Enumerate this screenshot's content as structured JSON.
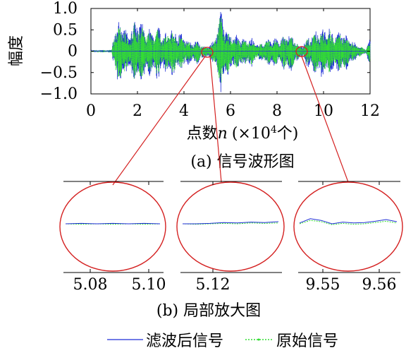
{
  "chart_data": [
    {
      "type": "line",
      "panel": "main",
      "caption": "(a) 信号波形图",
      "ylabel": "幅度",
      "xlabel_prefix": "点数",
      "xlabel_var": "n",
      "xlabel_unit_open": "(×10",
      "xlabel_unit_exp": "4",
      "xlabel_unit_close": "个)",
      "xlim": [
        0,
        12
      ],
      "ylim": [
        -1.0,
        1.0
      ],
      "xticks": [
        "0",
        "2",
        "4",
        "6",
        "8",
        "10",
        "12"
      ],
      "yticks": [
        "1.0",
        "0.5",
        "0",
        "−0.5",
        "−1.0"
      ],
      "ytick_values": [
        1.0,
        0.5,
        0,
        -0.5,
        -1.0
      ],
      "envelope": {
        "description_points_x": [
          0,
          0.9,
          1.0,
          1.3,
          1.6,
          1.9,
          2.1,
          2.4,
          2.6,
          2.9,
          3.1,
          3.4,
          3.7,
          4.0,
          4.3,
          4.6,
          4.9,
          5.1,
          5.3,
          5.5,
          5.6,
          5.8,
          6.0,
          6.3,
          6.6,
          6.9,
          7.2,
          7.5,
          7.8,
          8.1,
          8.4,
          8.7,
          9.0,
          9.3,
          9.6,
          9.9,
          10.2,
          10.5,
          10.8,
          11.1,
          11.3,
          11.5,
          11.8,
          12.0
        ],
        "pos": [
          0.02,
          0.03,
          0.5,
          0.72,
          0.35,
          0.75,
          0.7,
          0.55,
          0.45,
          0.6,
          0.35,
          0.55,
          0.45,
          0.35,
          0.2,
          0.25,
          0.1,
          0.15,
          0.25,
          0.75,
          0.95,
          0.55,
          0.4,
          0.35,
          0.3,
          0.3,
          0.15,
          0.25,
          0.3,
          0.25,
          0.45,
          0.35,
          0.1,
          0.3,
          0.45,
          0.5,
          0.55,
          0.4,
          0.45,
          0.3,
          0.2,
          0.15,
          0.05,
          0.3
        ],
        "neg": [
          -0.02,
          -0.03,
          -0.55,
          -0.75,
          -0.4,
          -0.75,
          -0.72,
          -0.6,
          -0.5,
          -0.65,
          -0.4,
          -0.6,
          -0.5,
          -0.4,
          -0.25,
          -0.3,
          -0.12,
          -0.18,
          -0.3,
          -0.78,
          -0.98,
          -0.6,
          -0.45,
          -0.4,
          -0.35,
          -0.35,
          -0.18,
          -0.3,
          -0.35,
          -0.3,
          -0.5,
          -0.4,
          -0.12,
          -0.35,
          -0.5,
          -0.6,
          -0.6,
          -0.45,
          -0.5,
          -0.35,
          -0.25,
          -0.18,
          -0.06,
          -0.35
        ]
      }
    },
    {
      "type": "line",
      "panel": "zoom",
      "caption": "(b) 局部放大图",
      "insets": [
        {
          "xticks": [
            "5.08",
            "5.10"
          ],
          "source_x": 5.0,
          "filtered_y": [
            0.0,
            0.01,
            0.0,
            0.01,
            0.0,
            0.01,
            0.0
          ],
          "original_y": [
            0.0,
            -0.01,
            0.0,
            -0.01,
            0.0,
            -0.01,
            0.0
          ]
        },
        {
          "xticks": [
            "5.12"
          ],
          "source_x": 5.1,
          "filtered_y": [
            0.0,
            0.0,
            0.01,
            0.03,
            0.02,
            0.04,
            0.03,
            0.05
          ],
          "original_y": [
            0.0,
            -0.01,
            0.0,
            0.01,
            0.0,
            0.02,
            0.01,
            0.02
          ]
        },
        {
          "xticks": [
            "9.55",
            "9.56"
          ],
          "source_x": 9.0,
          "filtered_y": [
            0.02,
            0.12,
            0.08,
            0.0,
            0.04,
            0.02,
            0.03,
            0.06,
            0.1,
            0.05
          ],
          "original_y": [
            0.0,
            0.08,
            0.05,
            -0.02,
            0.01,
            -0.01,
            0.0,
            0.03,
            0.06,
            0.02
          ]
        }
      ]
    }
  ],
  "legend": {
    "items": [
      {
        "label": "滤波后信号",
        "color": "#1f2fd6",
        "style": "solid"
      },
      {
        "label": "原始信号",
        "color": "#33dd33",
        "style": "dotted"
      }
    ]
  },
  "colors": {
    "filtered": "#1f2fd6",
    "original": "#33dd33",
    "callout": "#d42020"
  }
}
